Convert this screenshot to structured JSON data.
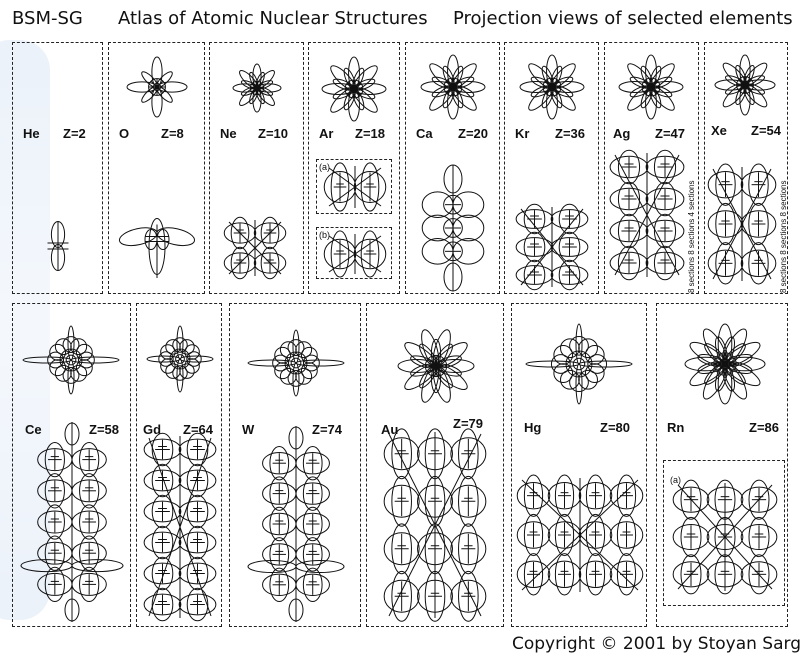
{
  "header": {
    "brand": "BSM-SG",
    "title": "Atlas of Atomic Nuclear Structures",
    "subtitle": "Projection views of selected elements"
  },
  "copyright": "Copyright © 2001 by Stoyan Sarg",
  "panels_top": [
    {
      "symbol": "He",
      "z": "Z=2"
    },
    {
      "symbol": "O",
      "z": "Z=8"
    },
    {
      "symbol": "Ne",
      "z": "Z=10"
    },
    {
      "symbol": "Ar",
      "z": "Z=18",
      "subviews": [
        "(a)",
        "(b)"
      ]
    },
    {
      "symbol": "Ca",
      "z": "Z=20"
    },
    {
      "symbol": "Kr",
      "z": "Z=36"
    },
    {
      "symbol": "Ag",
      "z": "Z=47",
      "note": "8 sections 8 sections 4 sections"
    },
    {
      "symbol": "Xe",
      "z": "Z=54",
      "note": "8 sections 8 sections 8 sections"
    }
  ],
  "panels_bottom": [
    {
      "symbol": "Ce",
      "z": "Z=58"
    },
    {
      "symbol": "Gd",
      "z": "Z=64"
    },
    {
      "symbol": "W",
      "z": "Z=74"
    },
    {
      "symbol": "Au",
      "z": "Z=79"
    },
    {
      "symbol": "Hg",
      "z": "Z=80"
    },
    {
      "symbol": "Rn",
      "z": "Z=86",
      "subviews": [
        "(a)"
      ]
    }
  ],
  "colors": {
    "line": "#111111",
    "background": "#ffffff",
    "watermark": "#7fa7dc"
  }
}
